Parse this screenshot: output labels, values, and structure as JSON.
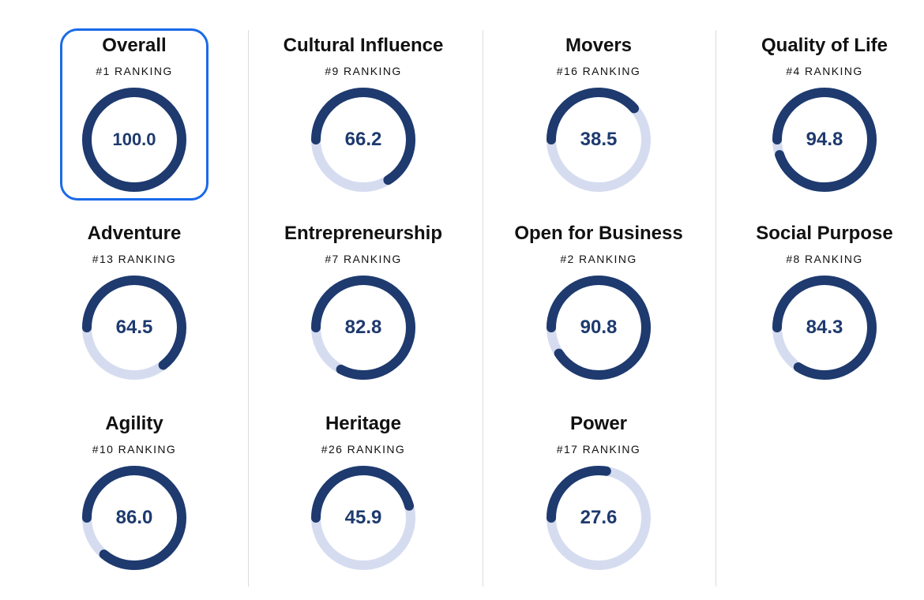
{
  "colors": {
    "track": "#d6dcf0",
    "progress": "#1e3a6e",
    "selected_border": "#1a6ae8",
    "value_text": "#1e3a6e"
  },
  "cards": [
    {
      "title": "Overall",
      "ranking": "#1 RANKING",
      "value": "100.0",
      "score": 100.0,
      "selected": true
    },
    {
      "title": "Cultural Influence",
      "ranking": "#9 RANKING",
      "value": "66.2",
      "score": 66.2
    },
    {
      "title": "Movers",
      "ranking": "#16 RANKING",
      "value": "38.5",
      "score": 38.5
    },
    {
      "title": "Quality of Life",
      "ranking": "#4 RANKING",
      "value": "94.8",
      "score": 94.8
    },
    {
      "title": "Adventure",
      "ranking": "#13 RANKING",
      "value": "64.5",
      "score": 64.5
    },
    {
      "title": "Entrepreneurship",
      "ranking": "#7 RANKING",
      "value": "82.8",
      "score": 82.8
    },
    {
      "title": "Open for Business",
      "ranking": "#2 RANKING",
      "value": "90.8",
      "score": 90.8
    },
    {
      "title": "Social Purpose",
      "ranking": "#8 RANKING",
      "value": "84.3",
      "score": 84.3
    },
    {
      "title": "Agility",
      "ranking": "#10 RANKING",
      "value": "86.0",
      "score": 86.0
    },
    {
      "title": "Heritage",
      "ranking": "#26 RANKING",
      "value": "45.9",
      "score": 45.9
    },
    {
      "title": "Power",
      "ranking": "#17 RANKING",
      "value": "27.6",
      "score": 27.6
    }
  ]
}
